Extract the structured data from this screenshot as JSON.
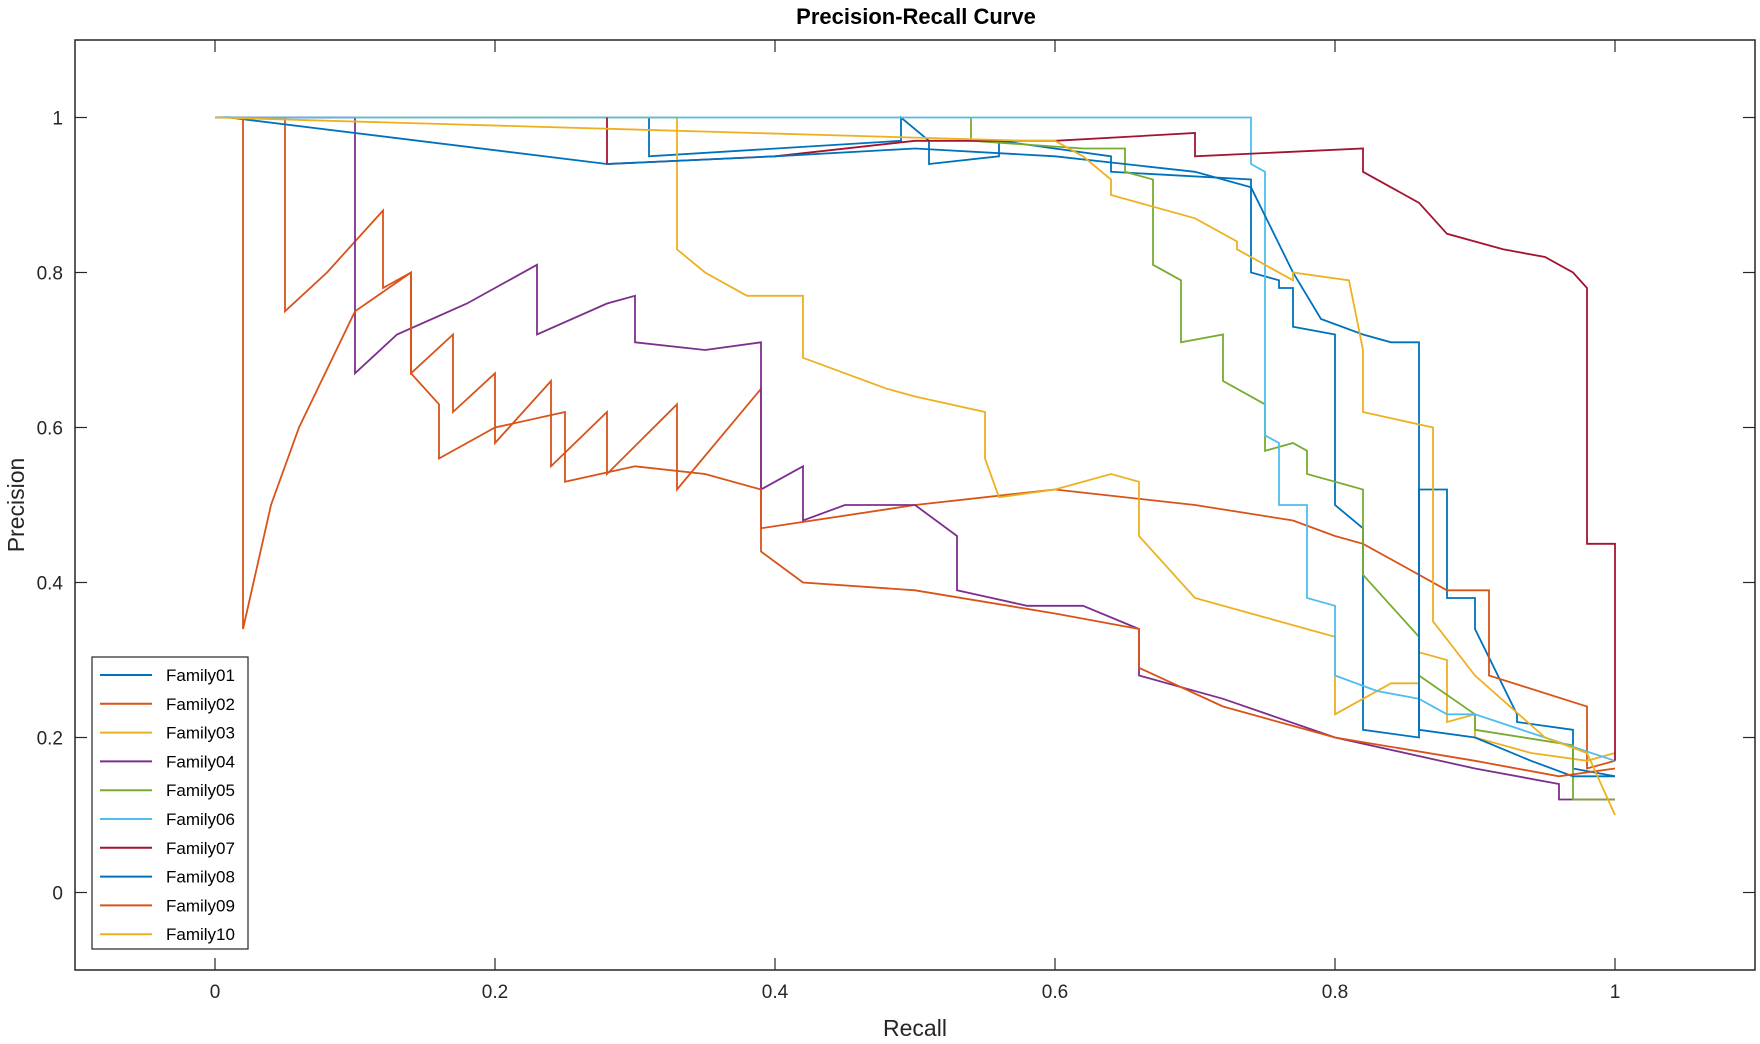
{
  "chart_data": {
    "type": "line",
    "title": "Precision-Recall Curve",
    "xlabel": "Recall",
    "ylabel": "Precision",
    "xlim": [
      -0.1,
      1.1
    ],
    "ylim": [
      -0.1,
      1.1
    ],
    "xticks": [
      0,
      0.2,
      0.4,
      0.6,
      0.8,
      1
    ],
    "xtick_labels": [
      "0",
      "0.2",
      "0.4",
      "0.6",
      "0.8",
      "1"
    ],
    "yticks": [
      0,
      0.2,
      0.4,
      0.6,
      0.8,
      1
    ],
    "ytick_labels": [
      "0",
      "0.2",
      "0.4",
      "0.6",
      "0.8",
      "1"
    ],
    "legend_position": "bottom-left",
    "series": [
      {
        "name": "Family01",
        "color": "#0072BD",
        "x": [
          0.31,
          0.31,
          0.49,
          0.49,
          0.51,
          0.51,
          0.56,
          0.56,
          0.64,
          0.64,
          0.74,
          0.74,
          0.76,
          0.76,
          0.77,
          0.77,
          0.8,
          0.8,
          0.82,
          0.82,
          0.86,
          0.86,
          0.88,
          0.88,
          0.9,
          0.9,
          0.93,
          0.93,
          0.97,
          0.97,
          1.0
        ],
        "y": [
          1.0,
          0.95,
          0.97,
          1.0,
          0.97,
          0.94,
          0.95,
          0.97,
          0.95,
          0.93,
          0.92,
          0.8,
          0.79,
          0.78,
          0.78,
          0.73,
          0.72,
          0.5,
          0.47,
          0.21,
          0.2,
          0.52,
          0.52,
          0.38,
          0.38,
          0.34,
          0.23,
          0.22,
          0.21,
          0.16,
          0.15
        ]
      },
      {
        "name": "Family02",
        "color": "#D95319",
        "x": [
          0.0,
          0.05,
          0.05,
          0.08,
          0.12,
          0.12,
          0.14,
          0.14,
          0.17,
          0.17,
          0.2,
          0.2,
          0.24,
          0.24,
          0.28,
          0.28,
          0.33,
          0.33,
          0.39,
          0.39,
          0.5,
          0.6,
          0.7,
          0.77,
          0.8,
          0.82,
          0.85,
          0.88,
          0.91,
          0.91,
          0.98,
          0.98,
          1.0
        ],
        "y": [
          1.0,
          1.0,
          0.75,
          0.8,
          0.88,
          0.78,
          0.8,
          0.67,
          0.72,
          0.62,
          0.67,
          0.58,
          0.66,
          0.55,
          0.62,
          0.54,
          0.63,
          0.52,
          0.65,
          0.47,
          0.5,
          0.52,
          0.5,
          0.48,
          0.46,
          0.45,
          0.42,
          0.39,
          0.39,
          0.28,
          0.24,
          0.16,
          0.17
        ]
      },
      {
        "name": "Family03",
        "color": "#EDB120",
        "x": [
          0.0,
          0.33,
          0.33,
          0.35,
          0.38,
          0.42,
          0.42,
          0.45,
          0.48,
          0.5,
          0.55,
          0.55,
          0.56,
          0.6,
          0.64,
          0.66,
          0.66,
          0.7,
          0.74,
          0.8,
          0.8,
          0.82,
          0.84,
          0.86,
          0.86,
          0.88,
          0.88,
          0.9,
          0.9,
          0.94,
          0.98,
          1.0
        ],
        "y": [
          1.0,
          1.0,
          0.83,
          0.8,
          0.77,
          0.77,
          0.69,
          0.67,
          0.65,
          0.64,
          0.62,
          0.56,
          0.51,
          0.52,
          0.54,
          0.53,
          0.46,
          0.38,
          0.36,
          0.33,
          0.23,
          0.25,
          0.27,
          0.27,
          0.31,
          0.3,
          0.22,
          0.23,
          0.2,
          0.18,
          0.17,
          0.18
        ]
      },
      {
        "name": "Family04",
        "color": "#7E2F8E",
        "x": [
          0.0,
          0.1,
          0.1,
          0.13,
          0.18,
          0.23,
          0.23,
          0.28,
          0.3,
          0.3,
          0.35,
          0.39,
          0.39,
          0.42,
          0.42,
          0.45,
          0.5,
          0.53,
          0.53,
          0.58,
          0.62,
          0.66,
          0.66,
          0.72,
          0.8,
          0.9,
          0.96,
          0.96,
          1.0
        ],
        "y": [
          1.0,
          1.0,
          0.67,
          0.72,
          0.76,
          0.81,
          0.72,
          0.76,
          0.77,
          0.71,
          0.7,
          0.71,
          0.52,
          0.55,
          0.48,
          0.5,
          0.5,
          0.46,
          0.39,
          0.37,
          0.37,
          0.34,
          0.28,
          0.25,
          0.2,
          0.16,
          0.14,
          0.12,
          0.12
        ]
      },
      {
        "name": "Family05",
        "color": "#77AC30",
        "x": [
          0.54,
          0.54,
          0.62,
          0.65,
          0.65,
          0.67,
          0.67,
          0.69,
          0.69,
          0.72,
          0.72,
          0.75,
          0.75,
          0.77,
          0.78,
          0.78,
          0.82,
          0.82,
          0.86,
          0.86,
          0.9,
          0.9,
          0.97,
          0.97,
          1.0
        ],
        "y": [
          1.0,
          0.97,
          0.96,
          0.96,
          0.93,
          0.92,
          0.81,
          0.79,
          0.71,
          0.72,
          0.66,
          0.63,
          0.57,
          0.58,
          0.57,
          0.54,
          0.52,
          0.41,
          0.33,
          0.28,
          0.23,
          0.21,
          0.19,
          0.12,
          0.12
        ]
      },
      {
        "name": "Family06",
        "color": "#4DBEEE",
        "x": [
          0.0,
          0.74,
          0.74,
          0.75,
          0.75,
          0.76,
          0.76,
          0.78,
          0.78,
          0.8,
          0.8,
          0.83,
          0.86,
          0.88,
          0.9,
          0.95,
          1.0
        ],
        "y": [
          1.0,
          1.0,
          0.94,
          0.93,
          0.59,
          0.58,
          0.5,
          0.5,
          0.38,
          0.37,
          0.28,
          0.26,
          0.25,
          0.23,
          0.23,
          0.2,
          0.17
        ]
      },
      {
        "name": "Family07",
        "color": "#A2142F",
        "x": [
          0.28,
          0.28,
          0.4,
          0.5,
          0.6,
          0.7,
          0.7,
          0.82,
          0.82,
          0.86,
          0.88,
          0.92,
          0.95,
          0.97,
          0.98,
          0.98,
          1.0,
          1.0
        ],
        "y": [
          1.0,
          0.94,
          0.95,
          0.97,
          0.97,
          0.98,
          0.95,
          0.96,
          0.93,
          0.89,
          0.85,
          0.83,
          0.82,
          0.8,
          0.78,
          0.45,
          0.45,
          0.17
        ]
      },
      {
        "name": "Family08",
        "color": "#0072BD",
        "x": [
          0.0,
          0.01,
          0.28,
          0.4,
          0.5,
          0.6,
          0.7,
          0.74,
          0.74,
          0.77,
          0.79,
          0.82,
          0.84,
          0.86,
          0.86,
          0.9,
          0.94,
          0.97,
          1.0
        ],
        "y": [
          1.0,
          1.0,
          0.94,
          0.95,
          0.96,
          0.95,
          0.93,
          0.91,
          0.91,
          0.8,
          0.74,
          0.72,
          0.71,
          0.71,
          0.21,
          0.2,
          0.17,
          0.15,
          0.15
        ]
      },
      {
        "name": "Family09",
        "color": "#D95319",
        "x": [
          0.02,
          0.02,
          0.04,
          0.06,
          0.1,
          0.14,
          0.14,
          0.16,
          0.16,
          0.2,
          0.25,
          0.25,
          0.3,
          0.35,
          0.39,
          0.39,
          0.42,
          0.5,
          0.6,
          0.66,
          0.66,
          0.72,
          0.8,
          0.9,
          0.96,
          1.0
        ],
        "y": [
          1.0,
          0.34,
          0.5,
          0.6,
          0.75,
          0.8,
          0.67,
          0.63,
          0.56,
          0.6,
          0.62,
          0.53,
          0.55,
          0.54,
          0.52,
          0.44,
          0.4,
          0.39,
          0.36,
          0.34,
          0.29,
          0.24,
          0.2,
          0.17,
          0.15,
          0.16
        ]
      },
      {
        "name": "Family10",
        "color": "#EDB120",
        "x": [
          0.0,
          0.58,
          0.6,
          0.62,
          0.64,
          0.64,
          0.7,
          0.73,
          0.73,
          0.77,
          0.77,
          0.81,
          0.82,
          0.82,
          0.87,
          0.87,
          0.9,
          0.95,
          0.98,
          1.0
        ],
        "y": [
          1.0,
          0.97,
          0.97,
          0.95,
          0.92,
          0.9,
          0.87,
          0.84,
          0.83,
          0.79,
          0.8,
          0.79,
          0.7,
          0.62,
          0.6,
          0.35,
          0.28,
          0.2,
          0.18,
          0.1
        ]
      }
    ]
  }
}
